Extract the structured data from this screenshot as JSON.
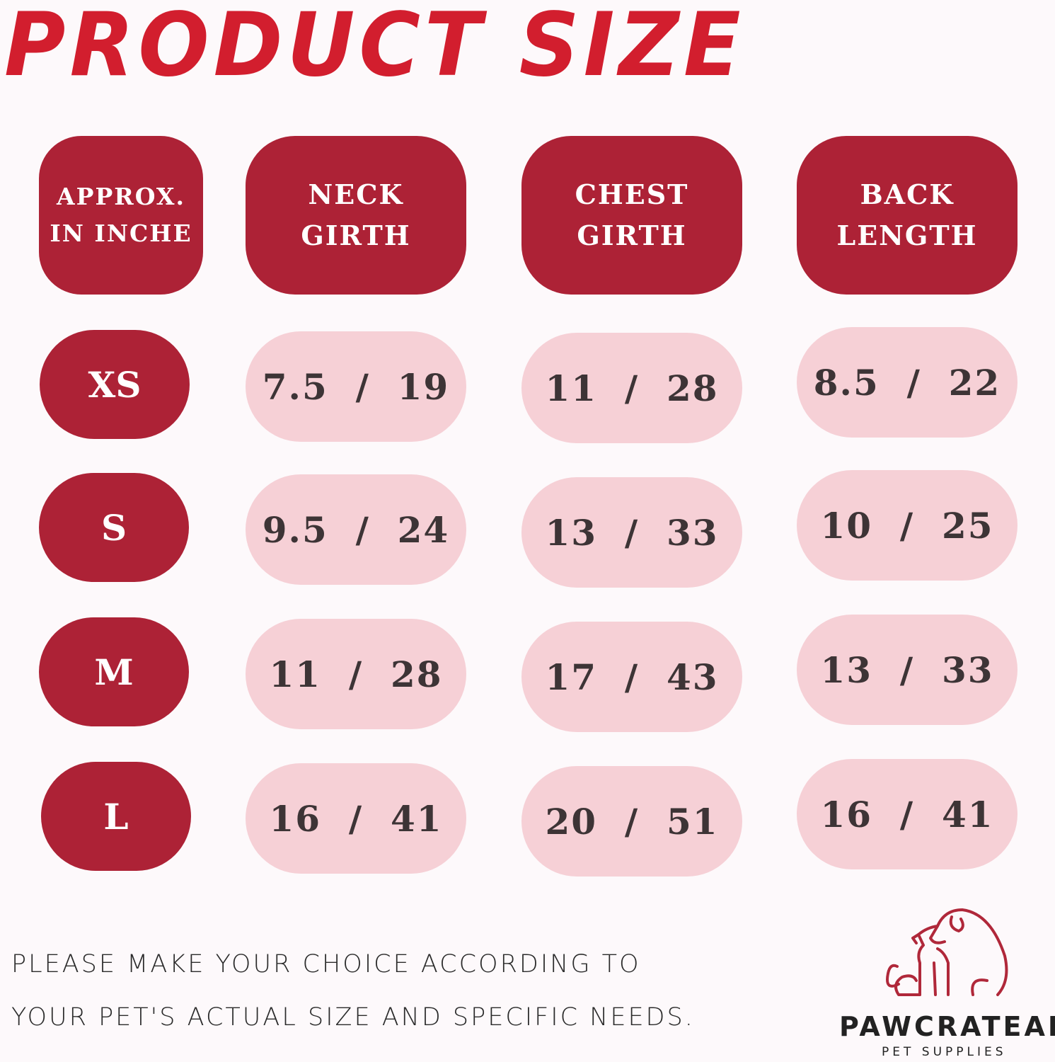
{
  "title": "PRODUCT SIZE",
  "headers": [
    {
      "line1": "APPROX.",
      "line2": "IN INCHE"
    },
    {
      "line1": "NECK",
      "line2": "GIRTH"
    },
    {
      "line1": "CHEST",
      "line2": "GIRTH"
    },
    {
      "line1": "BACK",
      "line2": "LENGTH"
    }
  ],
  "rows": [
    {
      "size": "XS",
      "neck": "7.5  /  19",
      "chest": "11  /  28",
      "back": "8.5  /  22"
    },
    {
      "size": "S",
      "neck": "9.5  /  24",
      "chest": "13  /  33",
      "back": "10  /  25"
    },
    {
      "size": "M",
      "neck": "11  /  28",
      "chest": "17  /  43",
      "back": "13  /  33"
    },
    {
      "size": "L",
      "neck": "16  /  41",
      "chest": "20  /  51",
      "back": "16  /  41"
    }
  ],
  "note": {
    "line1": "PLEASE MAKE YOUR CHOICE ACCORDING TO",
    "line2": "YOUR PET'S ACTUAL SIZE AND SPECIFIC NEEDS."
  },
  "brand": {
    "name": "PAWCRATEAN",
    "tagline": "PET SUPPLIES"
  },
  "colors": {
    "title": "#d21e2e",
    "header": "#ad2236",
    "cell": "#f6d0d6",
    "cell_text": "#3d3436",
    "background": "#fdf9fb"
  }
}
